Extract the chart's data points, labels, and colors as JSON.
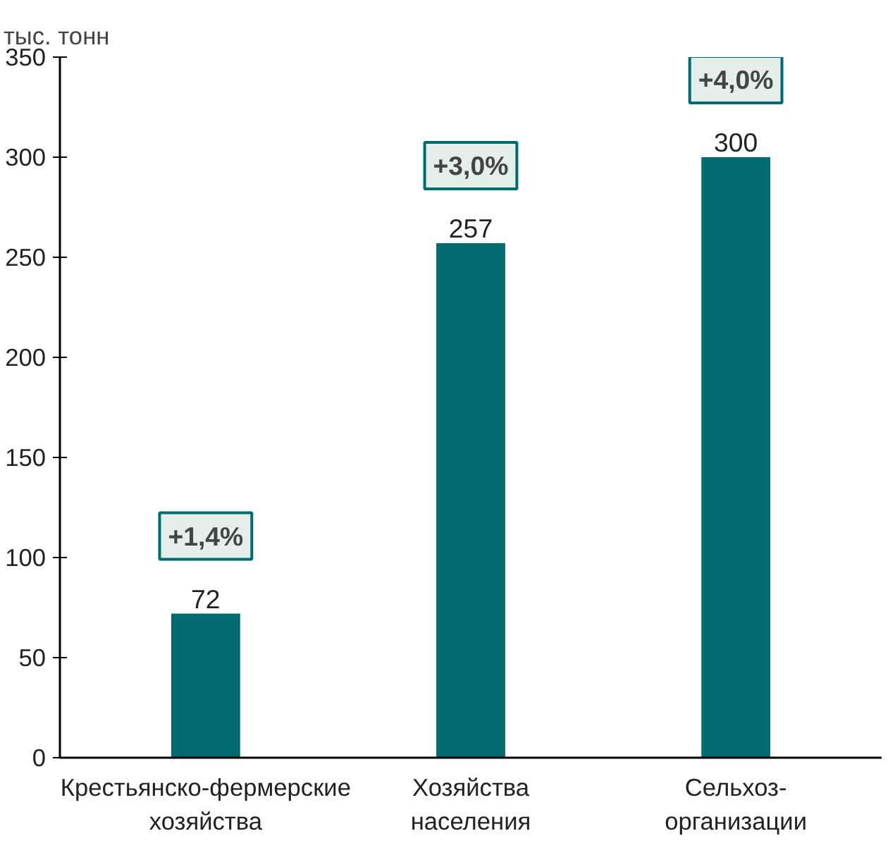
{
  "chart_data": {
    "type": "bar",
    "ylabel": "тыс. тонн",
    "categories": [
      "Крестьянско-фермерские\nхозяйства",
      "Хозяйства\nнаселения",
      "Сельхоз-\nорганизации"
    ],
    "values": [
      72,
      257,
      300
    ],
    "color": "#006b73",
    "ylim": [
      0,
      350
    ],
    "yticks": [
      0,
      50,
      100,
      150,
      200,
      250,
      300,
      350
    ],
    "grid": false,
    "data_labels": true,
    "annotations": [
      "+1,4%",
      "+3,0%",
      "+4,0%"
    ]
  }
}
